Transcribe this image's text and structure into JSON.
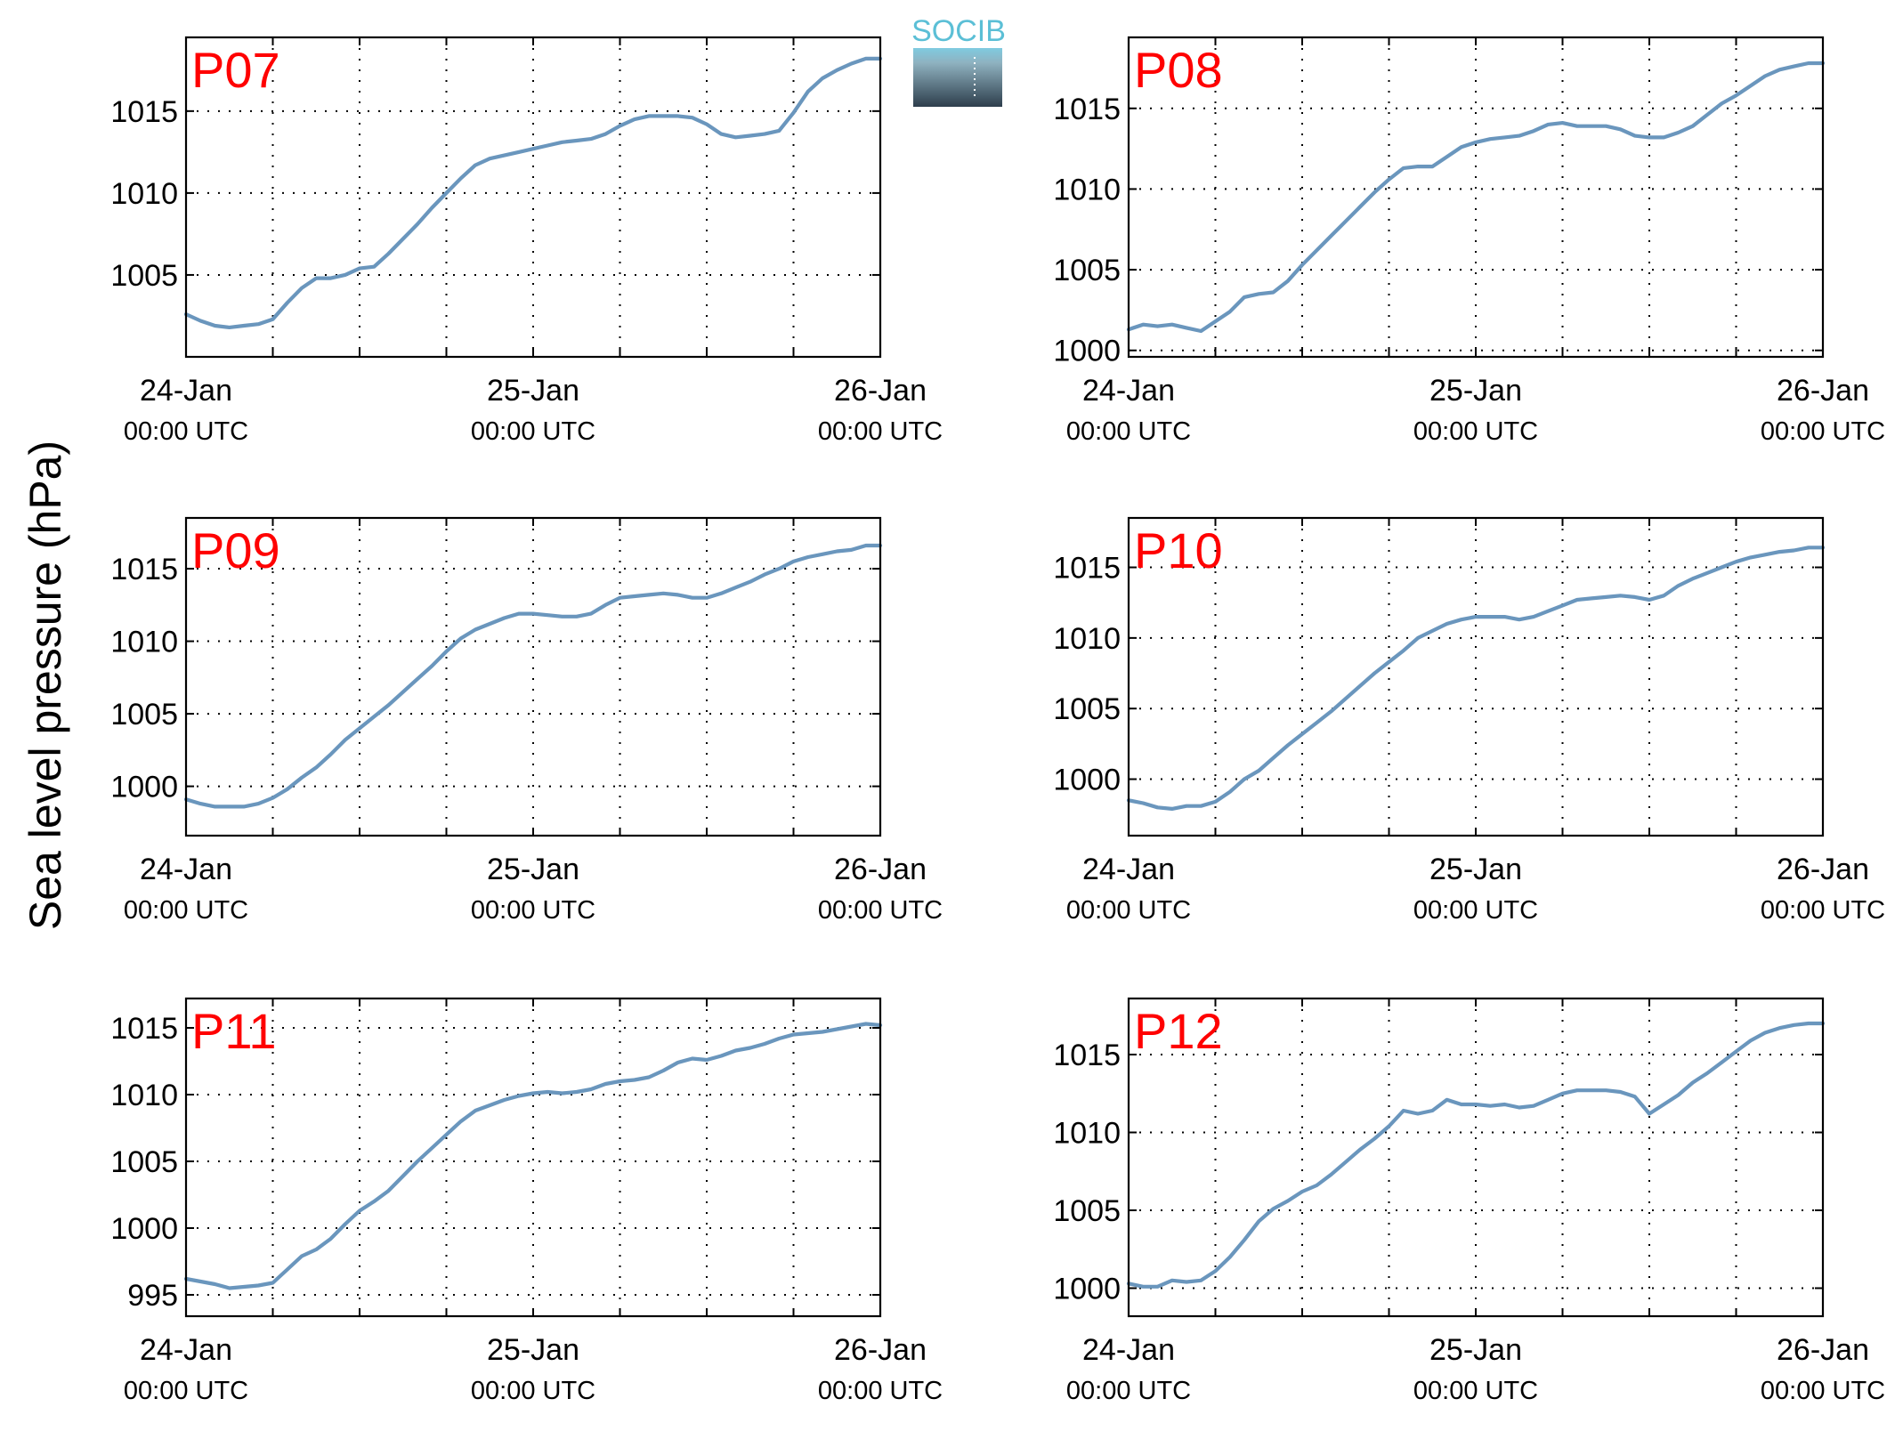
{
  "figure": {
    "ylabel": "Sea level pressure (hPa)",
    "logo_text": "SOCIB",
    "line_color": "#6a96bd",
    "title_color": "#ff0000"
  },
  "chart_data": [
    {
      "type": "line",
      "title": "P07",
      "ylabel": "Sea level pressure (hPa)",
      "xlim": [
        0,
        48
      ],
      "ylim": [
        1000,
        1019.5
      ],
      "yticks": [
        1005,
        1010,
        1015
      ],
      "xtick_labels": [
        {
          "x": 0,
          "date": "24-Jan",
          "time": "00:00 UTC"
        },
        {
          "x": 24,
          "date": "25-Jan",
          "time": "00:00 UTC"
        },
        {
          "x": 48,
          "date": "26-Jan",
          "time": "00:00 UTC"
        }
      ],
      "grid": true,
      "x_hours": [
        0,
        1,
        2,
        3,
        4,
        5,
        6,
        7,
        8,
        9,
        10,
        11,
        12,
        13,
        14,
        15,
        16,
        17,
        18,
        19,
        20,
        21,
        22,
        23,
        24,
        25,
        26,
        27,
        28,
        29,
        30,
        31,
        32,
        33,
        34,
        35,
        36,
        37,
        38,
        39,
        40,
        41,
        42,
        43,
        44,
        45,
        46,
        47,
        48
      ],
      "values": [
        1002.6,
        1002.2,
        1001.9,
        1001.8,
        1001.9,
        1002.0,
        1002.3,
        1003.3,
        1004.2,
        1004.8,
        1004.8,
        1005.0,
        1005.4,
        1005.5,
        1006.3,
        1007.2,
        1008.1,
        1009.1,
        1010.0,
        1010.9,
        1011.7,
        1012.1,
        1012.3,
        1012.5,
        1012.7,
        1012.9,
        1013.1,
        1013.2,
        1013.3,
        1013.6,
        1014.1,
        1014.5,
        1014.7,
        1014.7,
        1014.7,
        1014.6,
        1014.2,
        1013.6,
        1013.4,
        1013.5,
        1013.6,
        1013.8,
        1014.9,
        1016.2,
        1017.0,
        1017.5,
        1017.9,
        1018.2,
        1018.2
      ]
    },
    {
      "type": "line",
      "title": "P08",
      "ylabel": "Sea level pressure (hPa)",
      "xlim": [
        0,
        48
      ],
      "ylim": [
        999.6,
        1019.4
      ],
      "yticks": [
        1000,
        1005,
        1010,
        1015
      ],
      "xtick_labels": [
        {
          "x": 0,
          "date": "24-Jan",
          "time": "00:00 UTC"
        },
        {
          "x": 24,
          "date": "25-Jan",
          "time": "00:00 UTC"
        },
        {
          "x": 48,
          "date": "26-Jan",
          "time": "00:00 UTC"
        }
      ],
      "grid": true,
      "x_hours": [
        0,
        1,
        2,
        3,
        4,
        5,
        6,
        7,
        8,
        9,
        10,
        11,
        12,
        13,
        14,
        15,
        16,
        17,
        18,
        19,
        20,
        21,
        22,
        23,
        24,
        25,
        26,
        27,
        28,
        29,
        30,
        31,
        32,
        33,
        34,
        35,
        36,
        37,
        38,
        39,
        40,
        41,
        42,
        43,
        44,
        45,
        46,
        47,
        48
      ],
      "values": [
        1001.3,
        1001.6,
        1001.5,
        1001.6,
        1001.4,
        1001.2,
        1001.8,
        1002.4,
        1003.3,
        1003.5,
        1003.6,
        1004.3,
        1005.3,
        1006.2,
        1007.1,
        1008.0,
        1008.9,
        1009.8,
        1010.6,
        1011.3,
        1011.4,
        1011.4,
        1012.0,
        1012.6,
        1012.9,
        1013.1,
        1013.2,
        1013.3,
        1013.6,
        1014.0,
        1014.1,
        1013.9,
        1013.9,
        1013.9,
        1013.7,
        1013.3,
        1013.2,
        1013.2,
        1013.5,
        1013.9,
        1014.6,
        1015.3,
        1015.8,
        1016.4,
        1017.0,
        1017.4,
        1017.6,
        1017.8,
        1017.8
      ]
    },
    {
      "type": "line",
      "title": "P09",
      "ylabel": "Sea level pressure (hPa)",
      "xlim": [
        0,
        48
      ],
      "ylim": [
        996.6,
        1018.5
      ],
      "yticks": [
        1000,
        1005,
        1010,
        1015
      ],
      "xtick_labels": [
        {
          "x": 0,
          "date": "24-Jan",
          "time": "00:00 UTC"
        },
        {
          "x": 24,
          "date": "25-Jan",
          "time": "00:00 UTC"
        },
        {
          "x": 48,
          "date": "26-Jan",
          "time": "00:00 UTC"
        }
      ],
      "grid": true,
      "x_hours": [
        0,
        1,
        2,
        3,
        4,
        5,
        6,
        7,
        8,
        9,
        10,
        11,
        12,
        13,
        14,
        15,
        16,
        17,
        18,
        19,
        20,
        21,
        22,
        23,
        24,
        25,
        26,
        27,
        28,
        29,
        30,
        31,
        32,
        33,
        34,
        35,
        36,
        37,
        38,
        39,
        40,
        41,
        42,
        43,
        44,
        45,
        46,
        47,
        48
      ],
      "values": [
        999.1,
        998.8,
        998.6,
        998.6,
        998.6,
        998.8,
        999.2,
        999.8,
        1000.6,
        1001.3,
        1002.2,
        1003.2,
        1004.0,
        1004.8,
        1005.6,
        1006.5,
        1007.4,
        1008.3,
        1009.3,
        1010.2,
        1010.8,
        1011.2,
        1011.6,
        1011.9,
        1011.9,
        1011.8,
        1011.7,
        1011.7,
        1011.9,
        1012.5,
        1013.0,
        1013.1,
        1013.2,
        1013.3,
        1013.2,
        1013.0,
        1013.0,
        1013.3,
        1013.7,
        1014.1,
        1014.6,
        1015.0,
        1015.5,
        1015.8,
        1016.0,
        1016.2,
        1016.3,
        1016.6,
        1016.6
      ]
    },
    {
      "type": "line",
      "title": "P10",
      "ylabel": "Sea level pressure (hPa)",
      "xlim": [
        0,
        48
      ],
      "ylim": [
        996.0,
        1018.5
      ],
      "yticks": [
        1000,
        1005,
        1010,
        1015
      ],
      "xtick_labels": [
        {
          "x": 0,
          "date": "24-Jan",
          "time": "00:00 UTC"
        },
        {
          "x": 24,
          "date": "25-Jan",
          "time": "00:00 UTC"
        },
        {
          "x": 48,
          "date": "26-Jan",
          "time": "00:00 UTC"
        }
      ],
      "grid": true,
      "x_hours": [
        0,
        1,
        2,
        3,
        4,
        5,
        6,
        7,
        8,
        9,
        10,
        11,
        12,
        13,
        14,
        15,
        16,
        17,
        18,
        19,
        20,
        21,
        22,
        23,
        24,
        25,
        26,
        27,
        28,
        29,
        30,
        31,
        32,
        33,
        34,
        35,
        36,
        37,
        38,
        39,
        40,
        41,
        42,
        43,
        44,
        45,
        46,
        47,
        48
      ],
      "values": [
        998.5,
        998.3,
        998.0,
        997.9,
        998.1,
        998.1,
        998.4,
        999.1,
        1000.0,
        1000.6,
        1001.5,
        1002.4,
        1003.2,
        1004.0,
        1004.8,
        1005.7,
        1006.6,
        1007.5,
        1008.3,
        1009.1,
        1010.0,
        1010.5,
        1011.0,
        1011.3,
        1011.5,
        1011.5,
        1011.5,
        1011.3,
        1011.5,
        1011.9,
        1012.3,
        1012.7,
        1012.8,
        1012.9,
        1013.0,
        1012.9,
        1012.7,
        1013.0,
        1013.7,
        1014.2,
        1014.6,
        1015.0,
        1015.4,
        1015.7,
        1015.9,
        1016.1,
        1016.2,
        1016.4,
        1016.4
      ]
    },
    {
      "type": "line",
      "title": "P11",
      "ylabel": "Sea level pressure (hPa)",
      "xlim": [
        0,
        48
      ],
      "ylim": [
        993.4,
        1017.2
      ],
      "yticks": [
        995,
        1000,
        1005,
        1010,
        1015
      ],
      "xtick_labels": [
        {
          "x": 0,
          "date": "24-Jan",
          "time": "00:00 UTC"
        },
        {
          "x": 24,
          "date": "25-Jan",
          "time": "00:00 UTC"
        },
        {
          "x": 48,
          "date": "26-Jan",
          "time": "00:00 UTC"
        }
      ],
      "grid": true,
      "x_hours": [
        0,
        1,
        2,
        3,
        4,
        5,
        6,
        7,
        8,
        9,
        10,
        11,
        12,
        13,
        14,
        15,
        16,
        17,
        18,
        19,
        20,
        21,
        22,
        23,
        24,
        25,
        26,
        27,
        28,
        29,
        30,
        31,
        32,
        33,
        34,
        35,
        36,
        37,
        38,
        39,
        40,
        41,
        42,
        43,
        44,
        45,
        46,
        47,
        48
      ],
      "values": [
        996.2,
        996.0,
        995.8,
        995.5,
        995.6,
        995.7,
        995.9,
        996.9,
        997.9,
        998.4,
        999.2,
        1000.3,
        1001.3,
        1002.0,
        1002.8,
        1003.9,
        1005.0,
        1006.0,
        1007.0,
        1008.0,
        1008.8,
        1009.2,
        1009.6,
        1009.9,
        1010.1,
        1010.2,
        1010.1,
        1010.2,
        1010.4,
        1010.8,
        1011.0,
        1011.1,
        1011.3,
        1011.8,
        1012.4,
        1012.7,
        1012.6,
        1012.9,
        1013.3,
        1013.5,
        1013.8,
        1014.2,
        1014.5,
        1014.6,
        1014.7,
        1014.9,
        1015.1,
        1015.3,
        1015.2
      ]
    },
    {
      "type": "line",
      "title": "P12",
      "ylabel": "Sea level pressure (hPa)",
      "xlim": [
        0,
        48
      ],
      "ylim": [
        998.2,
        1018.6
      ],
      "yticks": [
        1000,
        1005,
        1010,
        1015
      ],
      "xtick_labels": [
        {
          "x": 0,
          "date": "24-Jan",
          "time": "00:00 UTC"
        },
        {
          "x": 24,
          "date": "25-Jan",
          "time": "00:00 UTC"
        },
        {
          "x": 48,
          "date": "26-Jan",
          "time": "00:00 UTC"
        }
      ],
      "grid": true,
      "x_hours": [
        0,
        1,
        2,
        3,
        4,
        5,
        6,
        7,
        8,
        9,
        10,
        11,
        12,
        13,
        14,
        15,
        16,
        17,
        18,
        19,
        20,
        21,
        22,
        23,
        24,
        25,
        26,
        27,
        28,
        29,
        30,
        31,
        32,
        33,
        34,
        35,
        36,
        37,
        38,
        39,
        40,
        41,
        42,
        43,
        44,
        45,
        46,
        47,
        48
      ],
      "values": [
        1000.3,
        1000.1,
        1000.1,
        1000.5,
        1000.4,
        1000.5,
        1001.1,
        1002.0,
        1003.1,
        1004.3,
        1005.1,
        1005.6,
        1006.2,
        1006.6,
        1007.3,
        1008.1,
        1008.9,
        1009.6,
        1010.4,
        1011.4,
        1011.2,
        1011.4,
        1012.1,
        1011.8,
        1011.8,
        1011.7,
        1011.8,
        1011.6,
        1011.7,
        1012.1,
        1012.5,
        1012.7,
        1012.7,
        1012.7,
        1012.6,
        1012.3,
        1011.2,
        1011.8,
        1012.4,
        1013.2,
        1013.8,
        1014.5,
        1015.2,
        1015.9,
        1016.4,
        1016.7,
        1016.9,
        1017.0,
        1017.0
      ]
    }
  ]
}
